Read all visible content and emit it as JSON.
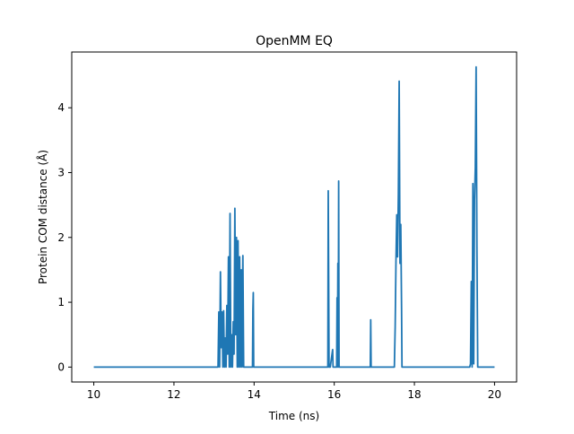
{
  "chart_data": {
    "type": "line",
    "title": "OpenMM EQ",
    "xlabel": "Time (ns)",
    "ylabel": "Protein COM distance (Å)",
    "xlim": [
      9.45,
      20.55
    ],
    "ylim": [
      -0.23,
      4.86
    ],
    "xticks": [
      10,
      12,
      14,
      16,
      18,
      20
    ],
    "yticks": [
      0,
      1,
      2,
      3,
      4
    ],
    "grid": false,
    "legend": "none",
    "series": [
      {
        "color": "#1f77b4",
        "x": [
          10.0,
          13.1,
          13.12,
          13.14,
          13.16,
          13.18,
          13.2,
          13.22,
          13.24,
          13.26,
          13.28,
          13.3,
          13.32,
          13.34,
          13.36,
          13.38,
          13.4,
          13.42,
          13.44,
          13.46,
          13.48,
          13.5,
          13.52,
          13.54,
          13.56,
          13.58,
          13.6,
          13.62,
          13.64,
          13.66,
          13.68,
          13.7,
          13.72,
          13.74,
          13.76,
          13.78,
          13.8,
          13.82,
          13.84,
          13.96,
          13.97,
          13.98,
          13.99,
          15.84,
          15.85,
          15.86,
          15.87,
          15.88,
          15.89,
          15.9,
          15.96,
          15.97,
          15.98,
          16.06,
          16.07,
          16.08,
          16.09,
          16.1,
          16.11,
          16.12,
          16.13,
          16.14,
          16.15,
          16.9,
          16.91,
          16.92,
          17.5,
          17.52,
          17.54,
          17.56,
          17.58,
          17.6,
          17.62,
          17.64,
          17.66,
          17.68,
          17.69,
          17.7,
          17.71,
          17.72,
          17.73,
          17.74,
          17.75,
          17.76,
          17.78,
          19.38,
          19.4,
          19.42,
          19.44,
          19.46,
          19.48,
          19.5,
          19.52,
          19.54,
          19.56,
          19.58,
          19.6,
          19.61,
          19.62,
          19.63,
          19.64,
          19.65,
          19.66,
          20.0
        ],
        "y": [
          0,
          0,
          0.85,
          0,
          1.47,
          0.3,
          0.85,
          0,
          0.87,
          0,
          0.45,
          0,
          0.95,
          0.2,
          1.7,
          0,
          2.37,
          0,
          0.5,
          0,
          0.7,
          0.2,
          2.45,
          0.5,
          2.0,
          0,
          1.95,
          0,
          1.7,
          0,
          1.5,
          0,
          1.72,
          0,
          0,
          0,
          0,
          0,
          0,
          0,
          0.88,
          1.15,
          0,
          0,
          2.72,
          1.4,
          0,
          0,
          0,
          0,
          0.27,
          0,
          0,
          0,
          1.07,
          0,
          1.6,
          0,
          2.87,
          0,
          0,
          0,
          0,
          0,
          0.73,
          0,
          0,
          0.62,
          1.63,
          2.35,
          1.7,
          2.67,
          4.41,
          1.6,
          2.2,
          0.9,
          0,
          0,
          0,
          0,
          0,
          0,
          0,
          0,
          0,
          0,
          0.05,
          1.32,
          0,
          2.83,
          0.05,
          2.58,
          3.08,
          4.63,
          1.82,
          0,
          0,
          0,
          0,
          0,
          0,
          0,
          0,
          0
        ]
      }
    ]
  }
}
